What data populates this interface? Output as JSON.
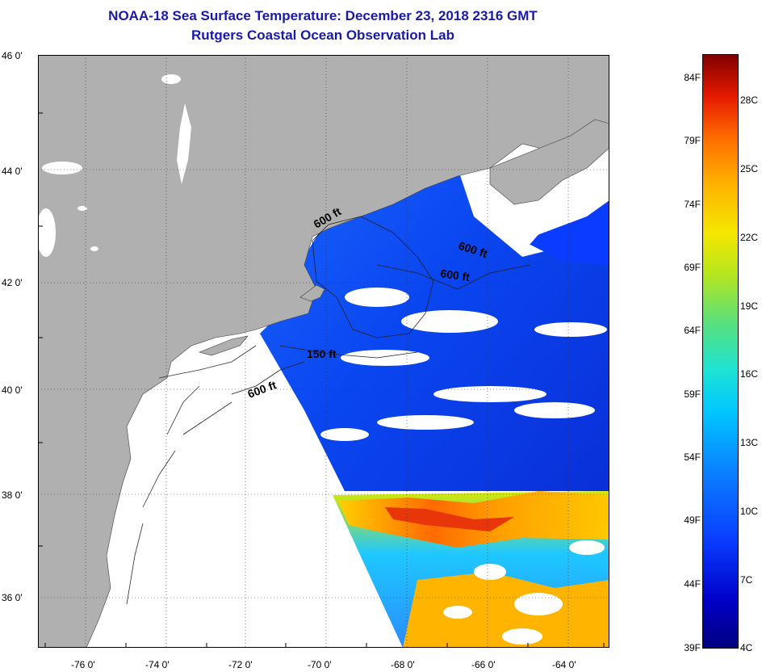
{
  "title": {
    "line1": "NOAA-18 Sea Surface Temperature:  December 23, 2018 2316 GMT",
    "line2": "Rutgers Coastal Ocean Observation Lab"
  },
  "axes": {
    "lat_labels": [
      "46 0'",
      "44 0'",
      "42 0'",
      "40 0'",
      "38 0'",
      "36 0'"
    ],
    "lon_labels": [
      "-76 0'",
      "-74 0'",
      "-72 0'",
      "-70 0'",
      "-68 0'",
      "-66 0'",
      "-64 0'"
    ]
  },
  "contours": {
    "labels": [
      "600 ft",
      "600 ft",
      "600 ft",
      "150 ft",
      "600 ft"
    ]
  },
  "colorbar": {
    "fahrenheit": [
      "84F",
      "79F",
      "74F",
      "69F",
      "64F",
      "59F",
      "54F",
      "49F",
      "44F",
      "39F"
    ],
    "celsius": [
      "28C",
      "25C",
      "22C",
      "19C",
      "16C",
      "13C",
      "10C",
      "7C",
      "4C"
    ]
  },
  "colors": {
    "land": "#b0b0b0",
    "no_data": "#ffffff",
    "cold": "#0a3cff",
    "warm": "#ff6c00",
    "title": "#1a1aa8"
  }
}
